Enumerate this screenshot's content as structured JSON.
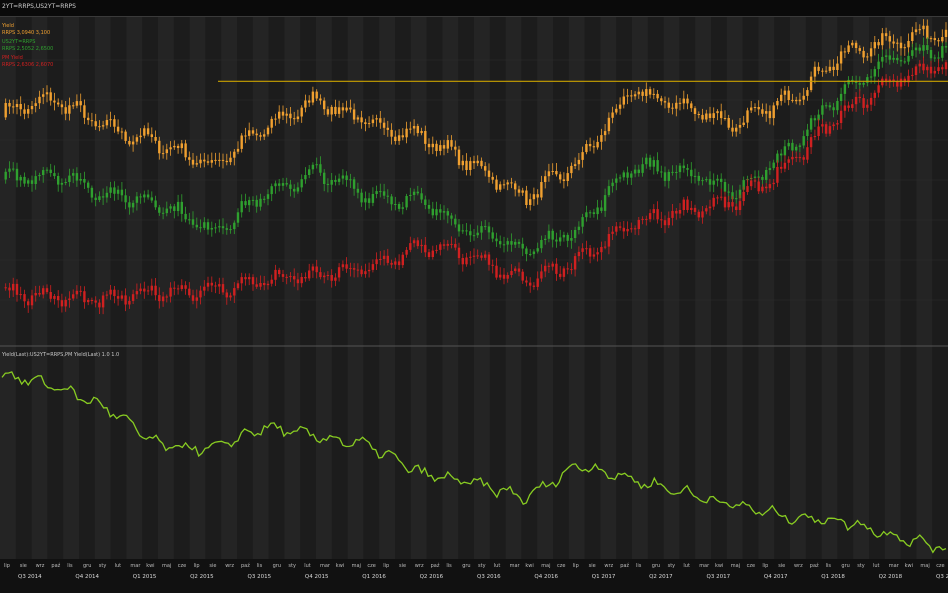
{
  "header": {
    "title": "2YT=RRPS,US2YT=RRPS"
  },
  "panels": {
    "lower_title": "Yield(Last):US2YT=RRPS,PM Yield(Last)  1.0 1.0"
  },
  "chart_data": [
    {
      "type": "candlestick",
      "panel": "upper",
      "title": "",
      "grid": true,
      "ylim": [
        0.6,
        2.8
      ],
      "reference_line": {
        "value": 2.37,
        "color": "#c8a000"
      },
      "series": [
        {
          "name": "Yield",
          "color": "#f0a030",
          "legend": "Yield",
          "legend_values": "RRPS 3,0940 3,100",
          "points": [
            [
              "Q1 2014",
              2.16
            ],
            [
              "Q2 2014",
              2.25
            ],
            [
              "Q3 2014",
              2.05
            ],
            [
              "Q4 2014",
              1.95
            ],
            [
              "Q1 2015",
              1.8
            ],
            [
              "Q2 2015",
              2.05
            ],
            [
              "Q3 2015",
              2.25
            ],
            [
              "Q4 2015",
              2.08
            ],
            [
              "Q1 2016",
              2.0
            ],
            [
              "Q2 2016",
              1.8
            ],
            [
              "Q3 2016",
              1.58
            ],
            [
              "Q4 2016",
              1.82
            ],
            [
              "Q1 2017",
              2.3
            ],
            [
              "Q2 2017",
              2.2
            ],
            [
              "Q3 2017",
              2.08
            ],
            [
              "Q4 2017",
              2.25
            ],
            [
              "Q1 2018",
              2.55
            ],
            [
              "Q2 2018",
              2.65
            ],
            [
              "Q3 2018",
              2.72
            ]
          ]
        },
        {
          "name": "US 2Y",
          "color": "#2fa02f",
          "legend": "US2YT=RRPS",
          "legend_values": "RRPS 2,5052 2,6500",
          "points": [
            [
              "Q1 2014",
              1.7
            ],
            [
              "Q2 2014",
              1.75
            ],
            [
              "Q3 2014",
              1.6
            ],
            [
              "Q4 2014",
              1.55
            ],
            [
              "Q1 2015",
              1.35
            ],
            [
              "Q2 2015",
              1.6
            ],
            [
              "Q3 2015",
              1.75
            ],
            [
              "Q4 2015",
              1.6
            ],
            [
              "Q1 2016",
              1.55
            ],
            [
              "Q2 2016",
              1.35
            ],
            [
              "Q3 2016",
              1.22
            ],
            [
              "Q4 2016",
              1.38
            ],
            [
              "Q1 2017",
              1.8
            ],
            [
              "Q2 2017",
              1.75
            ],
            [
              "Q3 2017",
              1.62
            ],
            [
              "Q4 2017",
              1.9
            ],
            [
              "Q1 2018",
              2.3
            ],
            [
              "Q2 2018",
              2.52
            ],
            [
              "Q3 2018",
              2.6
            ]
          ]
        },
        {
          "name": "PM Yield",
          "color": "#d02020",
          "legend": "PM Yield",
          "legend_values": "RRPS 2,6306 2,6070",
          "points": [
            [
              "Q1 2014",
              0.95
            ],
            [
              "Q2 2014",
              0.9
            ],
            [
              "Q3 2014",
              0.88
            ],
            [
              "Q4 2014",
              0.95
            ],
            [
              "Q1 2015",
              0.95
            ],
            [
              "Q2 2015",
              1.02
            ],
            [
              "Q3 2015",
              1.05
            ],
            [
              "Q4 2015",
              1.1
            ],
            [
              "Q1 2016",
              1.25
            ],
            [
              "Q2 2016",
              1.18
            ],
            [
              "Q3 2016",
              1.0
            ],
            [
              "Q4 2016",
              1.15
            ],
            [
              "Q1 2017",
              1.4
            ],
            [
              "Q2 2017",
              1.5
            ],
            [
              "Q3 2017",
              1.55
            ],
            [
              "Q4 2017",
              1.8
            ],
            [
              "Q1 2018",
              2.15
            ],
            [
              "Q2 2018",
              2.38
            ],
            [
              "Q3 2018",
              2.5
            ]
          ]
        }
      ]
    },
    {
      "type": "line",
      "panel": "lower",
      "title": "",
      "grid": true,
      "ylim": [
        0.0,
        1.1
      ],
      "series": [
        {
          "name": "",
          "color": "#88cc22",
          "points": [
            [
              "Q1 2014",
              0.98
            ],
            [
              "Q2 2014",
              0.92
            ],
            [
              "Q3 2014",
              0.8
            ],
            [
              "Q4 2014",
              0.6
            ],
            [
              "Q1 2015",
              0.58
            ],
            [
              "Q2 2015",
              0.7
            ],
            [
              "Q3 2015",
              0.65
            ],
            [
              "Q4 2015",
              0.6
            ],
            [
              "Q1 2016",
              0.45
            ],
            [
              "Q2 2016",
              0.4
            ],
            [
              "Q3 2016",
              0.32
            ],
            [
              "Q4 2016",
              0.5
            ],
            [
              "Q1 2017",
              0.42
            ],
            [
              "Q2 2017",
              0.35
            ],
            [
              "Q3 2017",
              0.28
            ],
            [
              "Q4 2017",
              0.22
            ],
            [
              "Q1 2018",
              0.2
            ],
            [
              "Q2 2018",
              0.12
            ],
            [
              "Q3 2018",
              0.05
            ]
          ]
        }
      ]
    }
  ],
  "x_axis": {
    "month_labels": [
      "lip",
      "sie",
      "wrz",
      "paź",
      "lis",
      "gru",
      "sty",
      "lut",
      "mar",
      "kwi",
      "maj",
      "cze"
    ],
    "quarters": [
      "Q3 2014",
      "Q4 2014",
      "Q1 2015",
      "Q2 2015",
      "Q3 2015",
      "Q4 2015",
      "Q1 2016",
      "Q2 2016",
      "Q3 2016",
      "Q4 2016",
      "Q1 2017",
      "Q2 2017",
      "Q3 2017",
      "Q4 2017",
      "Q1 2018",
      "Q2 2018",
      "Q3 2018"
    ]
  },
  "colors": {
    "background": "#1c1c1c",
    "grid": "#2f2f2f",
    "reference_line": "#c8a000"
  }
}
